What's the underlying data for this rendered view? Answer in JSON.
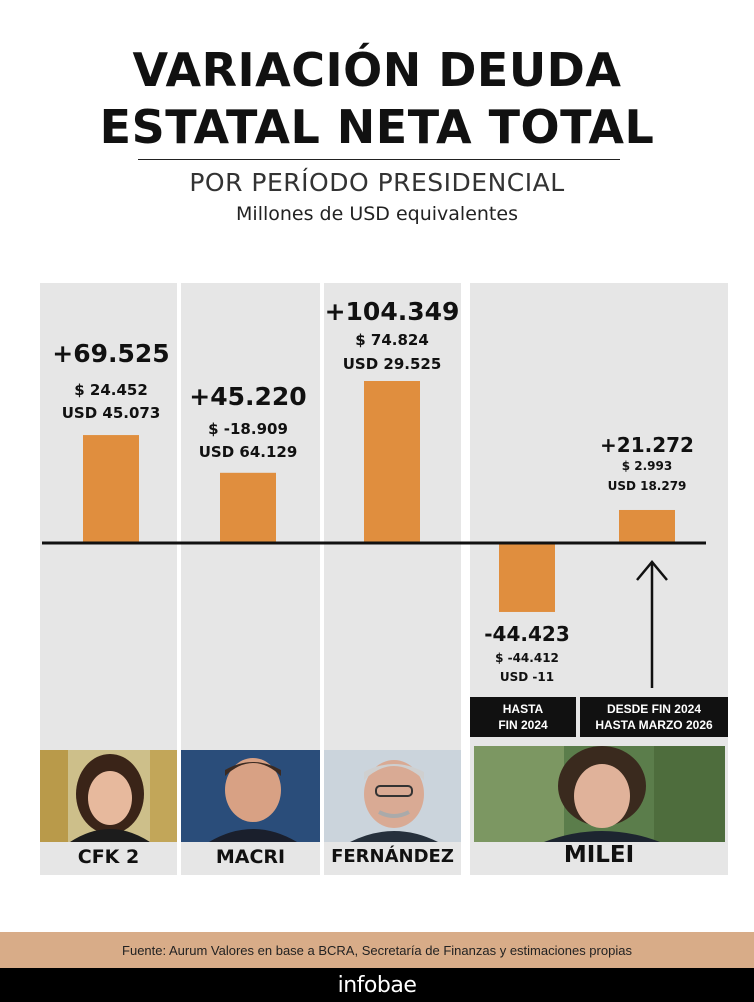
{
  "header": {
    "title_line1": "VARIACIÓN DEUDA",
    "title_line2": "ESTATAL NETA TOTAL",
    "subtitle": "POR PERÍODO PRESIDENCIAL",
    "units": "Millones de USD equivalentes"
  },
  "chart_data": {
    "type": "bar",
    "categories": [
      "CFK 2",
      "MACRI",
      "FERNÁNDEZ",
      "HASTA FIN 2024",
      "DESDE FIN 2024 HASTA MARZO 2026"
    ],
    "values": [
      69525,
      45220,
      104349,
      -44423,
      21272
    ],
    "total_labels": [
      "+69.525",
      "+45.220",
      "+104.349",
      "-44.423",
      "+21.272"
    ],
    "peso_labels": [
      "$  24.452",
      "$ -18.909",
      "$  74.824",
      "$ -44.412",
      "$ 2.993"
    ],
    "usd_labels": [
      "USD  45.073",
      "USD 64.129",
      "USD  29.525",
      "USD -11",
      "USD  18.279"
    ],
    "bar_color": "#e08e3e",
    "panel_color": "#e6e6e6"
  },
  "periods": {
    "milei_sub1": "HASTA\nFIN 2024",
    "milei_sub2": "DESDE FIN 2024\nHASTA MARZO 2026"
  },
  "presidents": [
    {
      "name": "CFK 2",
      "photo": "cfk-photo"
    },
    {
      "name": "MACRI",
      "photo": "macri-photo"
    },
    {
      "name": "FERNÁNDEZ",
      "photo": "fernandez-photo"
    },
    {
      "name": "MILEI",
      "photo": "milei-photo"
    }
  ],
  "footer": {
    "source": "Fuente: Aurum Valores en base a BCRA, Secretaría de Finanzas y estimaciones propias",
    "brand": "infobae"
  }
}
